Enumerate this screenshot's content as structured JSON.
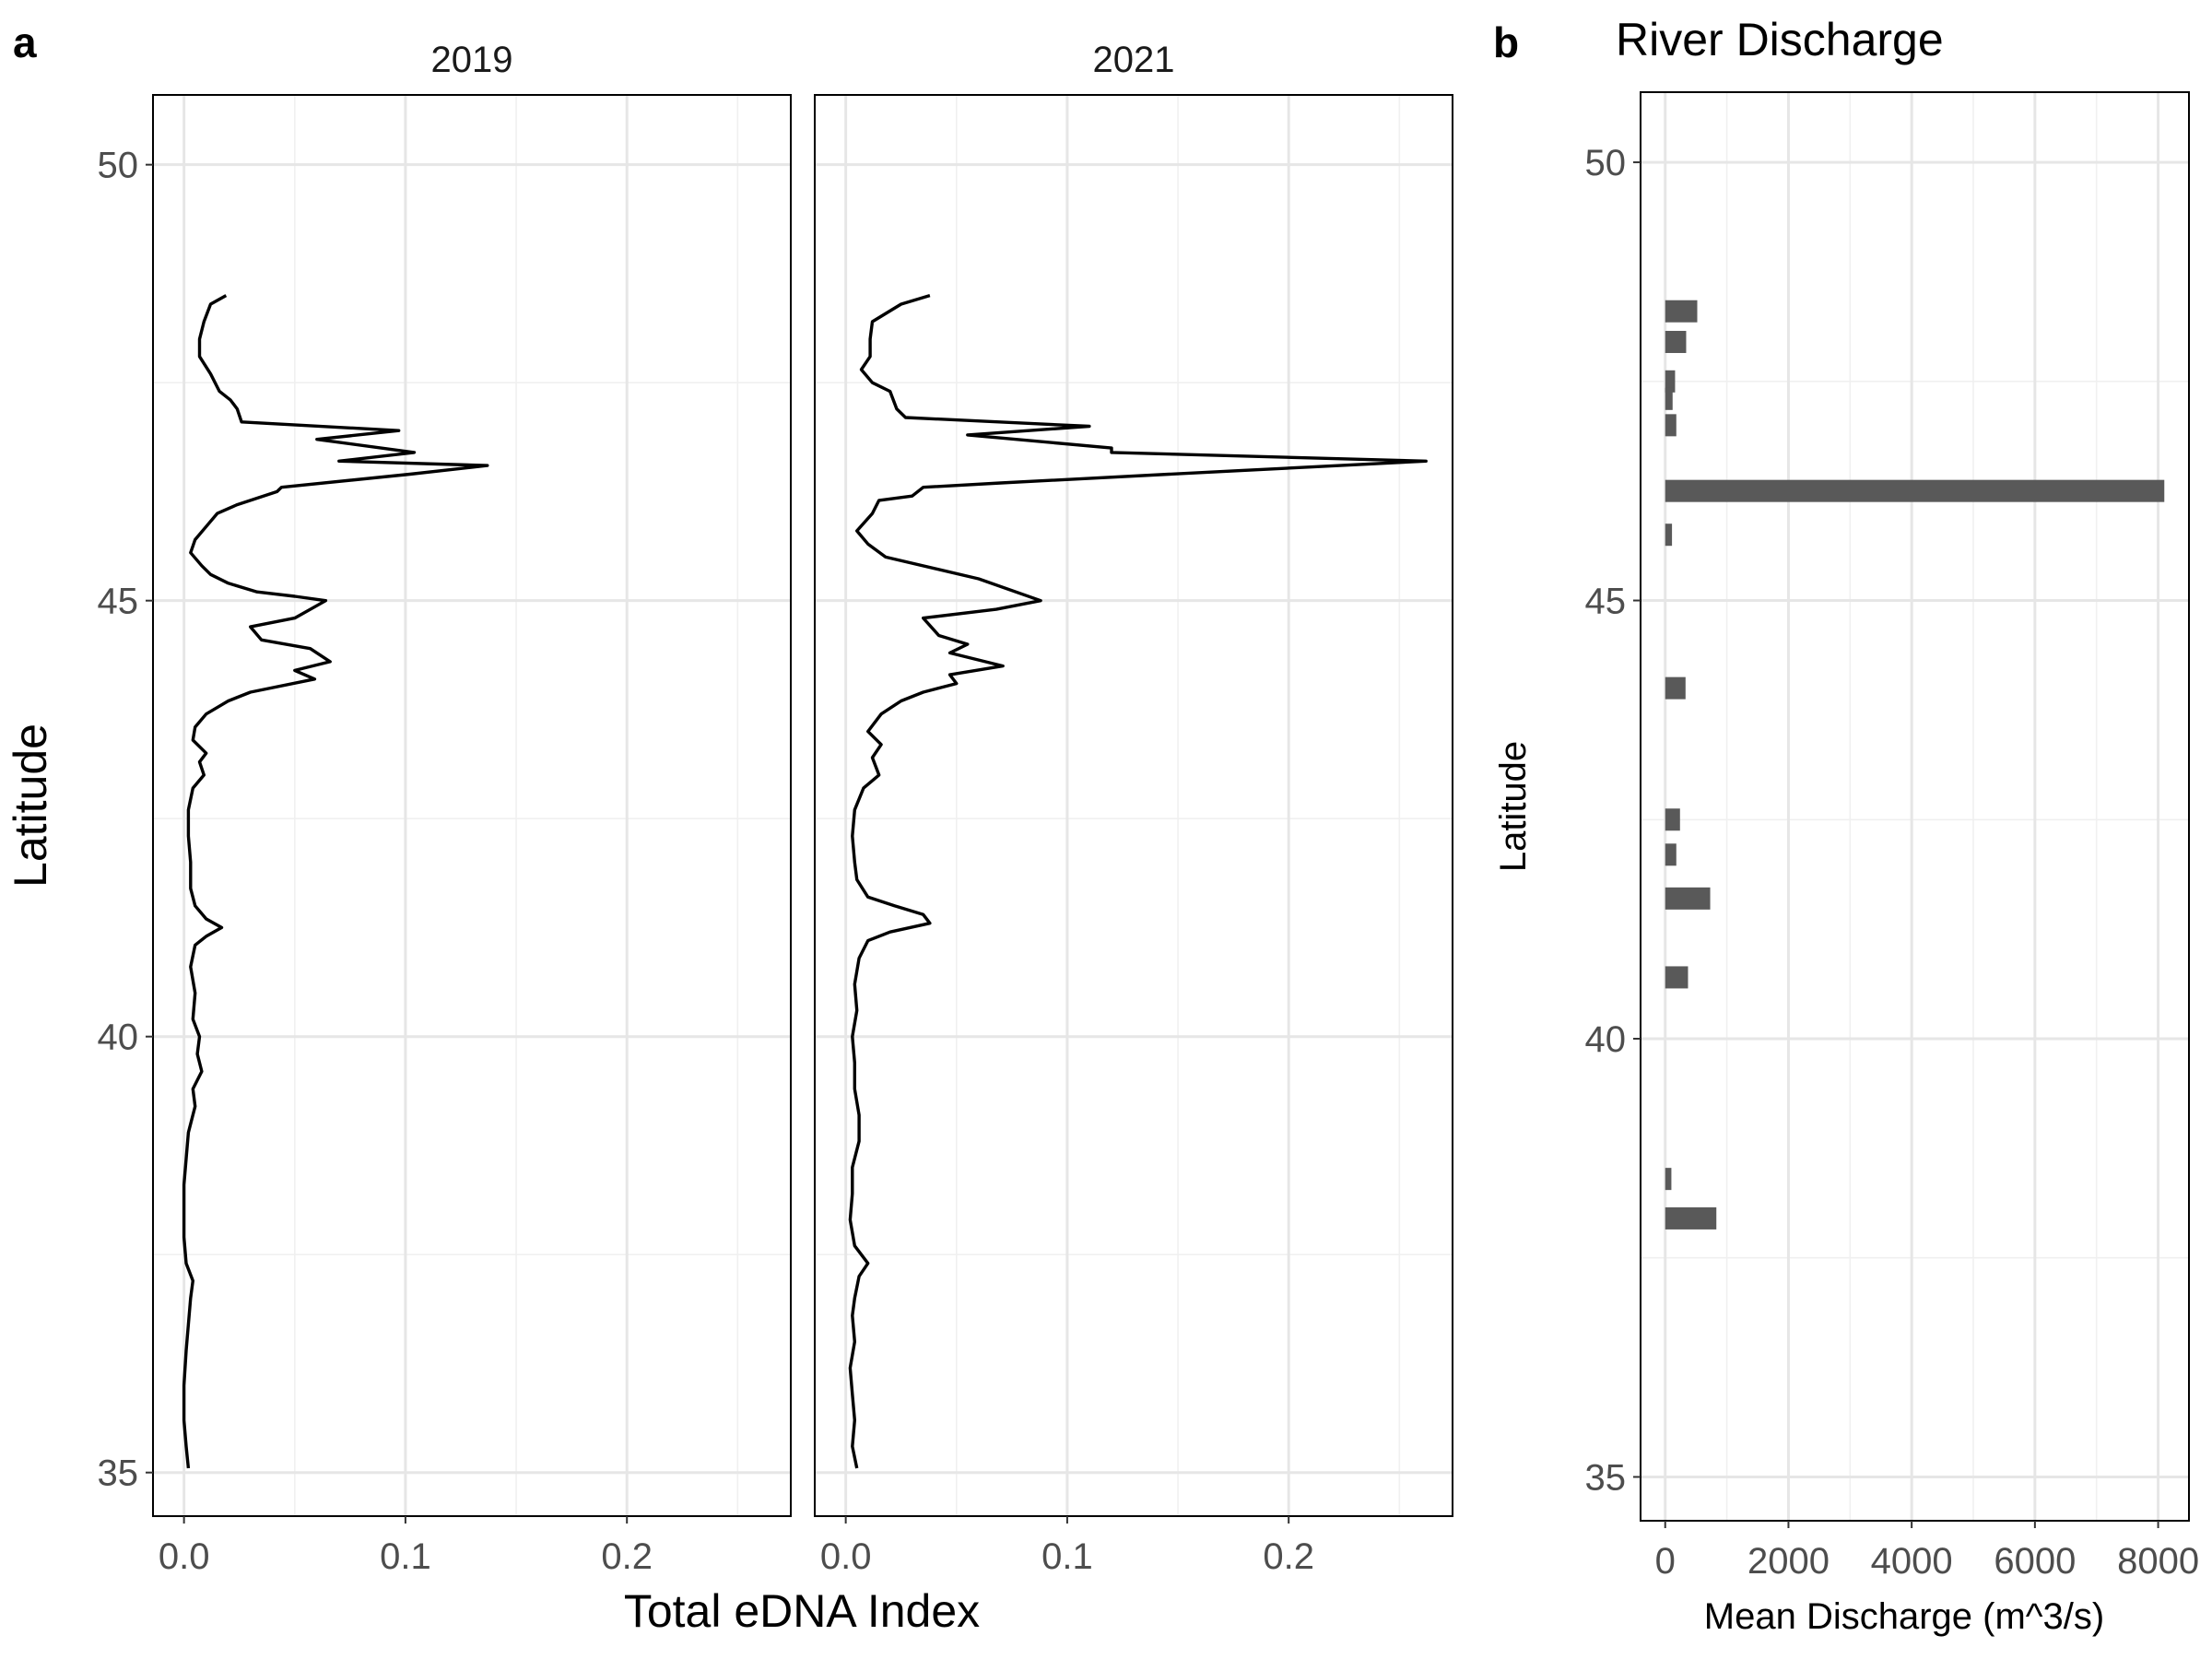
{
  "figure": {
    "panel_a_letter": "a",
    "panel_b_letter": "b"
  },
  "chart_data": [
    {
      "type": "line",
      "panel": "a",
      "title": "",
      "xlabel": "Total eDNA Index",
      "ylabel": "Latitude",
      "xlim": [
        -0.014,
        0.274
      ],
      "ylim": [
        34.5,
        50.8
      ],
      "x_ticks": [
        0.0,
        0.1,
        0.2
      ],
      "x_tick_labels": [
        "0.0",
        "0.1",
        "0.2"
      ],
      "y_ticks": [
        35,
        40,
        45,
        50
      ],
      "y_tick_labels": [
        "35",
        "40",
        "45",
        "50"
      ],
      "grid": true,
      "series": [
        {
          "facet": "2019",
          "points": [
            [
              0.019,
              48.5
            ],
            [
              0.012,
              48.4
            ],
            [
              0.009,
              48.2
            ],
            [
              0.007,
              48.0
            ],
            [
              0.007,
              47.8
            ],
            [
              0.012,
              47.6
            ],
            [
              0.016,
              47.4
            ],
            [
              0.021,
              47.3
            ],
            [
              0.024,
              47.2
            ],
            [
              0.026,
              47.05
            ],
            [
              0.097,
              46.95
            ],
            [
              0.06,
              46.85
            ],
            [
              0.104,
              46.7
            ],
            [
              0.07,
              46.6
            ],
            [
              0.137,
              46.55
            ],
            [
              0.102,
              46.45
            ],
            [
              0.044,
              46.3
            ],
            [
              0.042,
              46.25
            ],
            [
              0.024,
              46.1
            ],
            [
              0.015,
              46.0
            ],
            [
              0.01,
              45.85
            ],
            [
              0.005,
              45.7
            ],
            [
              0.003,
              45.55
            ],
            [
              0.008,
              45.4
            ],
            [
              0.012,
              45.3
            ],
            [
              0.02,
              45.2
            ],
            [
              0.033,
              45.1
            ],
            [
              0.05,
              45.05
            ],
            [
              0.064,
              45.0
            ],
            [
              0.05,
              44.8
            ],
            [
              0.03,
              44.7
            ],
            [
              0.035,
              44.55
            ],
            [
              0.057,
              44.45
            ],
            [
              0.066,
              44.3
            ],
            [
              0.05,
              44.2
            ],
            [
              0.059,
              44.1
            ],
            [
              0.03,
              43.95
            ],
            [
              0.02,
              43.85
            ],
            [
              0.01,
              43.7
            ],
            [
              0.005,
              43.55
            ],
            [
              0.004,
              43.4
            ],
            [
              0.01,
              43.25
            ],
            [
              0.007,
              43.15
            ],
            [
              0.009,
              43.0
            ],
            [
              0.004,
              42.85
            ],
            [
              0.002,
              42.6
            ],
            [
              0.002,
              42.3
            ],
            [
              0.003,
              42.0
            ],
            [
              0.003,
              41.7
            ],
            [
              0.005,
              41.5
            ],
            [
              0.01,
              41.35
            ],
            [
              0.017,
              41.25
            ],
            [
              0.01,
              41.15
            ],
            [
              0.005,
              41.05
            ],
            [
              0.003,
              40.8
            ],
            [
              0.005,
              40.5
            ],
            [
              0.004,
              40.2
            ],
            [
              0.007,
              40.0
            ],
            [
              0.006,
              39.8
            ],
            [
              0.008,
              39.6
            ],
            [
              0.004,
              39.4
            ],
            [
              0.005,
              39.2
            ],
            [
              0.002,
              38.9
            ],
            [
              0.001,
              38.6
            ],
            [
              0.0,
              38.3
            ],
            [
              0.0,
              38.0
            ],
            [
              0.0,
              37.7
            ],
            [
              0.001,
              37.4
            ],
            [
              0.004,
              37.2
            ],
            [
              0.003,
              37.0
            ],
            [
              0.002,
              36.7
            ],
            [
              0.001,
              36.4
            ],
            [
              0.0,
              36.0
            ],
            [
              0.0,
              35.6
            ],
            [
              0.001,
              35.3
            ],
            [
              0.002,
              35.05
            ]
          ]
        },
        {
          "facet": "2021",
          "points": [
            [
              0.038,
              48.5
            ],
            [
              0.025,
              48.4
            ],
            [
              0.012,
              48.2
            ],
            [
              0.011,
              48.0
            ],
            [
              0.011,
              47.8
            ],
            [
              0.007,
              47.65
            ],
            [
              0.012,
              47.5
            ],
            [
              0.02,
              47.4
            ],
            [
              0.023,
              47.2
            ],
            [
              0.027,
              47.1
            ],
            [
              0.11,
              47.0
            ],
            [
              0.055,
              46.9
            ],
            [
              0.12,
              46.75
            ],
            [
              0.12,
              46.7
            ],
            [
              0.262,
              46.6
            ],
            [
              0.146,
              46.45
            ],
            [
              0.07,
              46.35
            ],
            [
              0.035,
              46.3
            ],
            [
              0.03,
              46.2
            ],
            [
              0.015,
              46.15
            ],
            [
              0.012,
              46.0
            ],
            [
              0.005,
              45.8
            ],
            [
              0.01,
              45.65
            ],
            [
              0.018,
              45.5
            ],
            [
              0.06,
              45.25
            ],
            [
              0.088,
              45.0
            ],
            [
              0.068,
              44.9
            ],
            [
              0.035,
              44.8
            ],
            [
              0.042,
              44.6
            ],
            [
              0.055,
              44.5
            ],
            [
              0.047,
              44.4
            ],
            [
              0.071,
              44.25
            ],
            [
              0.047,
              44.15
            ],
            [
              0.05,
              44.05
            ],
            [
              0.035,
              43.95
            ],
            [
              0.025,
              43.85
            ],
            [
              0.016,
              43.7
            ],
            [
              0.01,
              43.5
            ],
            [
              0.016,
              43.35
            ],
            [
              0.012,
              43.2
            ],
            [
              0.015,
              43.0
            ],
            [
              0.008,
              42.85
            ],
            [
              0.004,
              42.6
            ],
            [
              0.003,
              42.3
            ],
            [
              0.004,
              42.0
            ],
            [
              0.005,
              41.8
            ],
            [
              0.01,
              41.6
            ],
            [
              0.022,
              41.5
            ],
            [
              0.035,
              41.4
            ],
            [
              0.038,
              41.3
            ],
            [
              0.02,
              41.2
            ],
            [
              0.01,
              41.1
            ],
            [
              0.006,
              40.9
            ],
            [
              0.004,
              40.6
            ],
            [
              0.005,
              40.3
            ],
            [
              0.003,
              40.0
            ],
            [
              0.004,
              39.7
            ],
            [
              0.004,
              39.4
            ],
            [
              0.006,
              39.1
            ],
            [
              0.006,
              38.8
            ],
            [
              0.003,
              38.5
            ],
            [
              0.003,
              38.2
            ],
            [
              0.002,
              37.9
            ],
            [
              0.004,
              37.6
            ],
            [
              0.01,
              37.4
            ],
            [
              0.006,
              37.25
            ],
            [
              0.004,
              37.0
            ],
            [
              0.003,
              36.8
            ],
            [
              0.004,
              36.5
            ],
            [
              0.002,
              36.2
            ],
            [
              0.003,
              35.9
            ],
            [
              0.004,
              35.6
            ],
            [
              0.003,
              35.3
            ],
            [
              0.005,
              35.05
            ]
          ]
        }
      ]
    },
    {
      "type": "bar",
      "panel": "b",
      "orientation": "horizontal",
      "title": "River Discharge",
      "xlabel": "Mean Discharge (m^3/s)",
      "ylabel": "Latitude",
      "xlim": [
        -400,
        8500
      ],
      "ylim": [
        34.5,
        50.8
      ],
      "x_ticks": [
        0,
        2000,
        4000,
        6000,
        8000
      ],
      "x_tick_labels": [
        "0",
        "2000",
        "4000",
        "6000",
        "8000"
      ],
      "y_ticks": [
        35,
        40,
        45,
        50
      ],
      "y_tick_labels": [
        "35",
        "40",
        "45",
        "50"
      ],
      "grid": true,
      "bars": [
        {
          "lat": 48.3,
          "value": 520
        },
        {
          "lat": 47.95,
          "value": 340
        },
        {
          "lat": 47.5,
          "value": 160
        },
        {
          "lat": 47.3,
          "value": 120
        },
        {
          "lat": 47.0,
          "value": 180
        },
        {
          "lat": 46.25,
          "value": 8100
        },
        {
          "lat": 45.75,
          "value": 110
        },
        {
          "lat": 44.0,
          "value": 330
        },
        {
          "lat": 42.5,
          "value": 240
        },
        {
          "lat": 42.1,
          "value": 180
        },
        {
          "lat": 41.6,
          "value": 730
        },
        {
          "lat": 40.7,
          "value": 370
        },
        {
          "lat": 38.4,
          "value": 100
        },
        {
          "lat": 37.95,
          "value": 830
        }
      ]
    }
  ]
}
